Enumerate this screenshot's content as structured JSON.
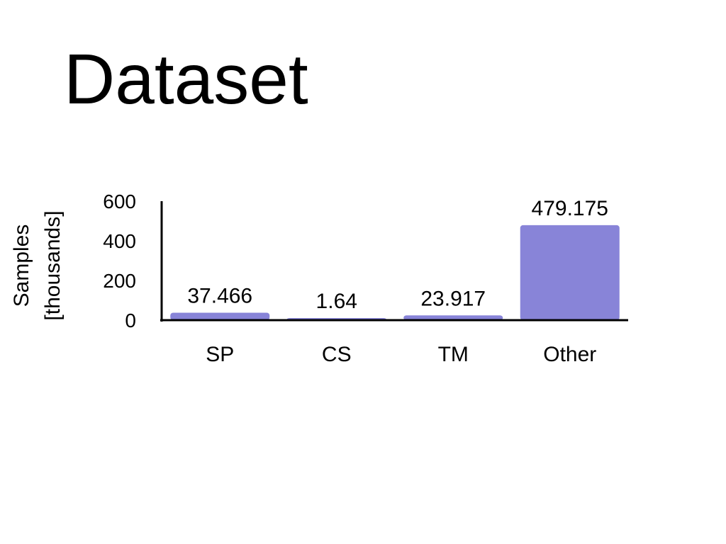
{
  "slide": {
    "title": "Dataset"
  },
  "chart_data": {
    "type": "bar",
    "title": "",
    "xlabel": "",
    "ylabel_lines": [
      "Samples",
      "[thousands]"
    ],
    "categories": [
      "SP",
      "CS",
      "TM",
      "Other"
    ],
    "values": [
      37.466,
      1.64,
      23.917,
      479.175
    ],
    "data_labels": [
      "37.466",
      "1.64",
      "23.917",
      "479.175"
    ],
    "ylim": [
      0,
      600
    ],
    "yticks": [
      "0",
      "200",
      "400",
      "600"
    ],
    "bar_color": "#8884d8",
    "grid": false,
    "legend": "none"
  }
}
